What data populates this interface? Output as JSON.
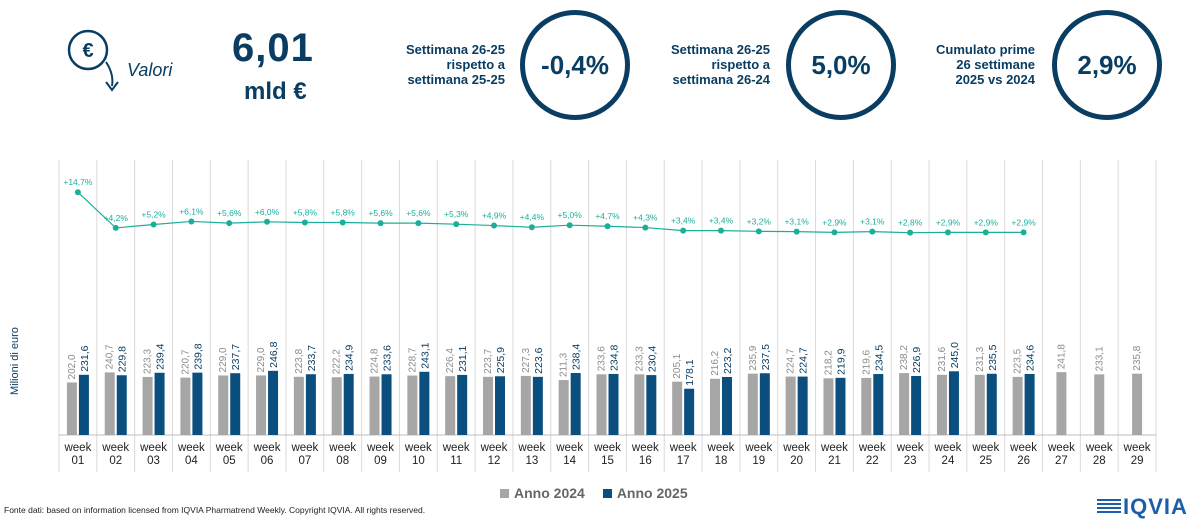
{
  "header": {
    "icon_label": "Valori",
    "total_value": "6,01",
    "total_unit": "mld €",
    "kpis": [
      {
        "label_lines": [
          "Settimana 26-25",
          "rispetto a",
          "settimana 25-25"
        ],
        "value": "-0,4%"
      },
      {
        "label_lines": [
          "Settimana 26-25",
          "rispetto a",
          "settimana 26-24"
        ],
        "value": "5,0%"
      },
      {
        "label_lines": [
          "Cumulato prime",
          "26 settimane",
          "2025 vs 2024"
        ],
        "value": "2,9%"
      }
    ]
  },
  "colors": {
    "y2024": "#a6a6a6",
    "y2025": "#0a4f7e",
    "growth": "#1aaf9a",
    "text": "#0a3d62",
    "grid": "#d9d9d9"
  },
  "chart_data": {
    "type": "bar",
    "ylabel": "Milioni di euro",
    "categories": [
      "week 01",
      "week 02",
      "week 03",
      "week 04",
      "week 05",
      "week 06",
      "week 07",
      "week 08",
      "week 09",
      "week 10",
      "week 11",
      "week 12",
      "week 13",
      "week 14",
      "week 15",
      "week 16",
      "week 17",
      "week 18",
      "week 19",
      "week 20",
      "week 21",
      "week 22",
      "week 23",
      "week 24",
      "week 25",
      "week 26",
      "week 27",
      "week 28",
      "week 29"
    ],
    "series": [
      {
        "name": "Anno 2024",
        "values": [
          "202,0",
          "240,7",
          "223,3",
          "220,7",
          "229,0",
          "229,0",
          "223,8",
          "222,2",
          "224,8",
          "228,7",
          "226,4",
          "223,7",
          "227,3",
          "211,3",
          "233,6",
          "233,3",
          "205,1",
          "216,2",
          "235,9",
          "224,7",
          "218,2",
          "219,6",
          "238,2",
          "231,6",
          "231,3",
          "223,5",
          "241,8",
          "233,1",
          "235,8"
        ]
      },
      {
        "name": "Anno 2025",
        "values": [
          "231,6",
          "229,8",
          "239,4",
          "239,8",
          "237,7",
          "246,8",
          "233,7",
          "234,9",
          "233,6",
          "243,1",
          "231,1",
          "225,9",
          "223,6",
          "238,4",
          "234,8",
          "230,4",
          "178,1",
          "223,2",
          "237,5",
          "224,7",
          "219,9",
          "234,5",
          "226,9",
          "245,0",
          "235,5",
          "234,6",
          null,
          null,
          null
        ]
      }
    ],
    "growth_line": [
      "+14,7%",
      "+4,2%",
      "+5,2%",
      "+6,1%",
      "+5,6%",
      "+6,0%",
      "+5,8%",
      "+5,8%",
      "+5,6%",
      "+5,6%",
      "+5,3%",
      "+4,9%",
      "+4,4%",
      "+5,0%",
      "+4,7%",
      "+4,3%",
      "+3,4%",
      "+3,4%",
      "+3,2%",
      "+3,1%",
      "+2,9%",
      "+3,1%",
      "+2,8%",
      "+2,9%",
      "+2,9%",
      "+2,9%"
    ]
  },
  "legend": [
    "Anno 2024",
    "Anno 2025"
  ],
  "footer": {
    "source": "Fonte dati: based on information licensed from IQVIA Pharmatrend Weekly. Copyright IQVIA. All rights reserved.",
    "logo": "IQVIA"
  }
}
